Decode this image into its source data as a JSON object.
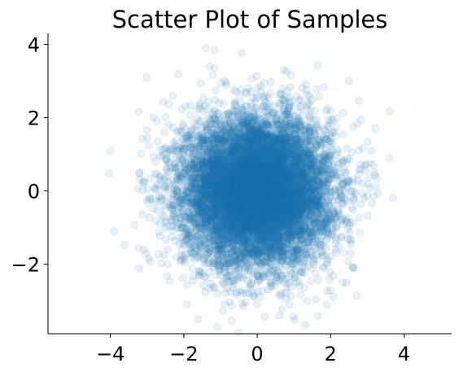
{
  "chart_data": {
    "type": "scatter",
    "title": "Scatter Plot of Samples",
    "xlabel": "",
    "ylabel": "",
    "xlim": [
      -5.7,
      5.3
    ],
    "ylim": [
      -3.9,
      4.3
    ],
    "xticks": [
      -4,
      -2,
      0,
      2,
      4
    ],
    "yticks": [
      -2,
      0,
      2,
      4
    ],
    "xtick_labels": [
      "−4",
      "−2",
      "0",
      "2",
      "4"
    ],
    "ytick_labels": [
      "−2",
      "0",
      "2",
      "4"
    ],
    "grid": false,
    "marker_color": "#1f77b4",
    "marker_alpha": 0.1,
    "series": [
      {
        "distribution": "bivariate standard normal (mean 0, std 1), ~10000 samples",
        "sample_count": 10000,
        "outliers": [
          {
            "x": -4.0,
            "y": 1.1
          },
          {
            "x": -3.9,
            "y": -1.1
          },
          {
            "x": -3.0,
            "y": 3.1
          },
          {
            "x": -1.4,
            "y": 3.9
          },
          {
            "x": -1.3,
            "y": 3.4
          },
          {
            "x": 2.5,
            "y": 3.0
          },
          {
            "x": 3.6,
            "y": 0.9
          },
          {
            "x": 3.7,
            "y": -0.2
          },
          {
            "x": -1.9,
            "y": -3.1
          },
          {
            "x": 0.6,
            "y": -3.4
          },
          {
            "x": -1.6,
            "y": -3.5
          },
          {
            "x": -2.3,
            "y": 2.6
          },
          {
            "x": 2.6,
            "y": -2.1
          },
          {
            "x": -3.2,
            "y": 0.5
          }
        ]
      }
    ]
  }
}
